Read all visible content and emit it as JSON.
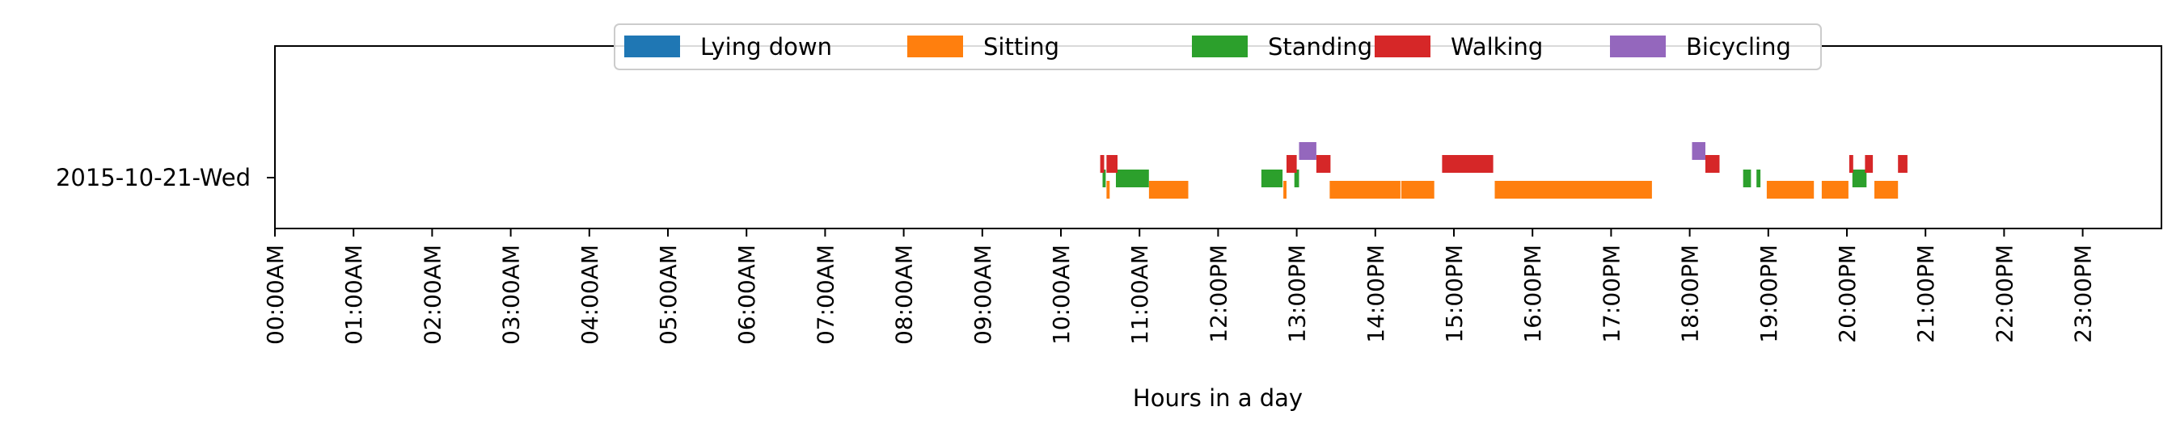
{
  "chart_data": {
    "type": "timeline",
    "title": "",
    "xlabel": "Hours in a day",
    "ylabel": "",
    "xlim": [
      0,
      24
    ],
    "x_unit": "hours",
    "grid": false,
    "legend_position": "top-center",
    "rows": [
      "2015-10-21-Wed"
    ],
    "x_tick_labels": [
      "00:00AM",
      "01:00AM",
      "02:00AM",
      "03:00AM",
      "04:00AM",
      "05:00AM",
      "06:00AM",
      "07:00AM",
      "08:00AM",
      "09:00AM",
      "10:00AM",
      "11:00AM",
      "12:00PM",
      "13:00PM",
      "14:00PM",
      "15:00PM",
      "16:00PM",
      "17:00PM",
      "18:00PM",
      "19:00PM",
      "20:00PM",
      "21:00PM",
      "22:00PM",
      "23:00PM"
    ],
    "series": [
      {
        "name": "Lying down",
        "color": "#1f77b4",
        "segments": []
      },
      {
        "name": "Sitting",
        "color": "#ff7f0e",
        "segments": [
          {
            "start": 10.58,
            "end": 10.62
          },
          {
            "start": 11.12,
            "end": 11.62
          },
          {
            "start": 12.83,
            "end": 12.87
          },
          {
            "start": 13.42,
            "end": 14.32
          },
          {
            "start": 14.33,
            "end": 14.75
          },
          {
            "start": 15.52,
            "end": 17.52
          },
          {
            "start": 18.98,
            "end": 19.58
          },
          {
            "start": 19.68,
            "end": 20.02
          },
          {
            "start": 20.35,
            "end": 20.65
          }
        ]
      },
      {
        "name": "Standing",
        "color": "#2ca02c",
        "segments": [
          {
            "start": 10.53,
            "end": 10.57
          },
          {
            "start": 10.7,
            "end": 11.12
          },
          {
            "start": 12.55,
            "end": 12.82
          },
          {
            "start": 12.97,
            "end": 13.03
          },
          {
            "start": 18.68,
            "end": 18.78
          },
          {
            "start": 18.85,
            "end": 18.9
          },
          {
            "start": 20.07,
            "end": 20.25
          }
        ]
      },
      {
        "name": "Walking",
        "color": "#d62728",
        "segments": [
          {
            "start": 10.5,
            "end": 10.55
          },
          {
            "start": 10.58,
            "end": 10.72
          },
          {
            "start": 12.87,
            "end": 13.0
          },
          {
            "start": 13.25,
            "end": 13.43
          },
          {
            "start": 14.85,
            "end": 15.5
          },
          {
            "start": 18.2,
            "end": 18.38
          },
          {
            "start": 20.03,
            "end": 20.08
          },
          {
            "start": 20.23,
            "end": 20.33
          },
          {
            "start": 20.65,
            "end": 20.77
          }
        ]
      },
      {
        "name": "Bicycling",
        "color": "#9467bd",
        "segments": [
          {
            "start": 13.03,
            "end": 13.25
          },
          {
            "start": 18.03,
            "end": 18.2
          }
        ]
      }
    ]
  }
}
